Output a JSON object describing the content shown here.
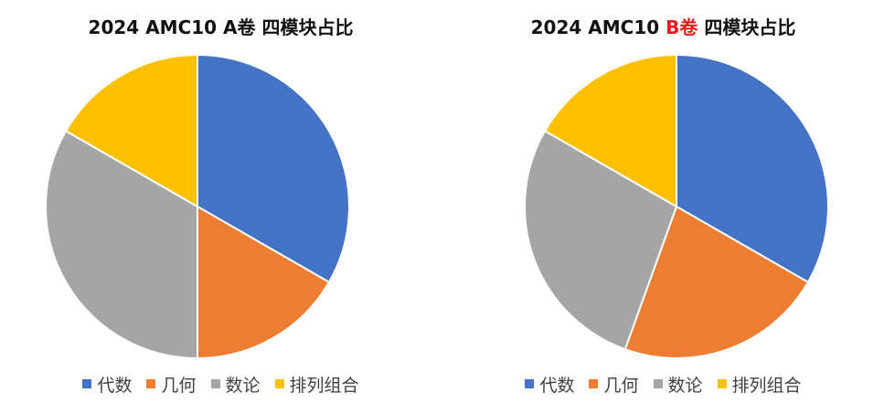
{
  "charts": [
    {
      "title_prefix": "2024 AMC10 ",
      "title_accent": "",
      "title_plain": "A卷",
      "title_suffix": " 四模块占比"
    },
    {
      "title_prefix": "2024 AMC10 ",
      "title_accent": "B卷",
      "title_plain": "",
      "title_suffix": " 四模块占比"
    }
  ],
  "legend": [
    "代数",
    "几何",
    "数论",
    "排列组合"
  ],
  "colors": {
    "代数": "#4472C4",
    "几何": "#ED7D31",
    "数论": "#A5A5A5",
    "排列组合": "#FFC000",
    "accent": "#E11D1D"
  },
  "chart_data": [
    {
      "type": "pie",
      "title": "2024 AMC10 A卷 四模块占比",
      "categories": [
        "代数",
        "几何",
        "数论",
        "排列组合"
      ],
      "values": [
        33.3,
        16.7,
        33.3,
        16.7
      ],
      "legend": "bottom"
    },
    {
      "type": "pie",
      "title": "2024 AMC10 B卷 四模块占比",
      "categories": [
        "代数",
        "几何",
        "数论",
        "排列组合"
      ],
      "values": [
        33.3,
        22.2,
        27.8,
        16.7
      ],
      "legend": "bottom"
    }
  ]
}
